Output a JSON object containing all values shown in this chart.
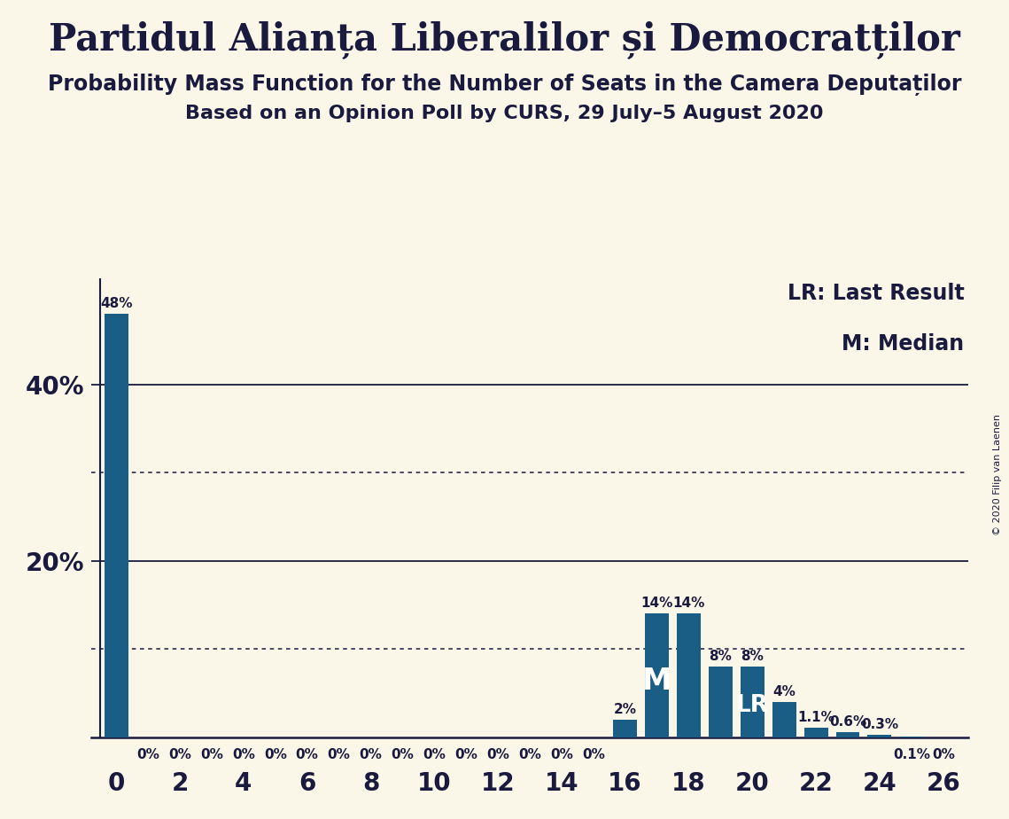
{
  "title": "Partidul Alianța Liberalilor și Democratților",
  "subtitle1": "Probability Mass Function for the Number of Seats in the Camera Deputaților",
  "subtitle2": "Based on an Opinion Poll by CURS, 29 July–5 August 2020",
  "copyright": "© 2020 Filip van Laenen",
  "legend_lr": "LR: Last Result",
  "legend_m": "M: Median",
  "background_color": "#faf6e8",
  "bar_color": "#1b5e85",
  "text_color": "#1a1a3e",
  "seats": [
    0,
    1,
    2,
    3,
    4,
    5,
    6,
    7,
    8,
    9,
    10,
    11,
    12,
    13,
    14,
    15,
    16,
    17,
    18,
    19,
    20,
    21,
    22,
    23,
    24,
    25,
    26
  ],
  "probabilities": [
    0.48,
    0.0,
    0.0,
    0.0,
    0.0,
    0.0,
    0.0,
    0.0,
    0.0,
    0.0,
    0.0,
    0.0,
    0.0,
    0.0,
    0.0,
    0.0,
    0.02,
    0.14,
    0.14,
    0.08,
    0.08,
    0.04,
    0.011,
    0.006,
    0.003,
    0.001,
    0.0
  ],
  "bar_labels": [
    "48%",
    "0%",
    "0%",
    "0%",
    "0%",
    "0%",
    "0%",
    "0%",
    "0%",
    "0%",
    "0%",
    "0%",
    "0%",
    "0%",
    "0%",
    "0%",
    "2%",
    "14%",
    "14%",
    "8%",
    "8%",
    "4%",
    "1.1%",
    "0.6%",
    "0.3%",
    "0.1%",
    "0%"
  ],
  "median_seat": 17,
  "lr_seat": 20,
  "ylim": [
    0,
    0.52
  ],
  "ytick_positions": [
    0.2,
    0.4
  ],
  "ytick_labels": [
    "20%",
    "40%"
  ],
  "xticks": [
    0,
    2,
    4,
    6,
    8,
    10,
    12,
    14,
    16,
    18,
    20,
    22,
    24,
    26
  ],
  "solid_hlines": [
    0.2,
    0.4
  ],
  "dotted_hlines": [
    0.1,
    0.3
  ],
  "title_fontsize": 30,
  "subtitle_fontsize": 17,
  "subtitle2_fontsize": 16,
  "axis_tick_fontsize": 20,
  "bar_label_fontsize": 11,
  "legend_fontsize": 17,
  "copyright_fontsize": 8
}
